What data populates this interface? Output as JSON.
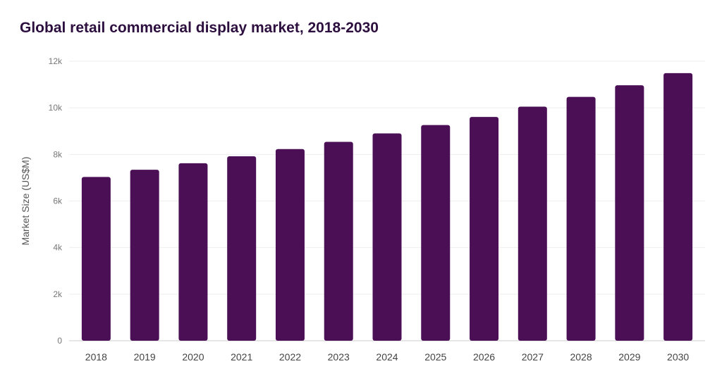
{
  "chart_data": {
    "type": "bar",
    "title": "Global retail commercial display market, 2018-2030",
    "xlabel": "",
    "ylabel": "Market Size (US$M)",
    "categories": [
      "2018",
      "2019",
      "2020",
      "2021",
      "2022",
      "2023",
      "2024",
      "2025",
      "2026",
      "2027",
      "2028",
      "2029",
      "2030"
    ],
    "values": [
      7030,
      7340,
      7620,
      7920,
      8230,
      8540,
      8900,
      9260,
      9610,
      10050,
      10470,
      10970,
      11490
    ],
    "ylim": [
      0,
      12000
    ],
    "yticks": [
      "0",
      "2k",
      "4k",
      "6k",
      "8k",
      "10k",
      "12k"
    ],
    "grid": true,
    "bar_color": "#4a0f55"
  }
}
